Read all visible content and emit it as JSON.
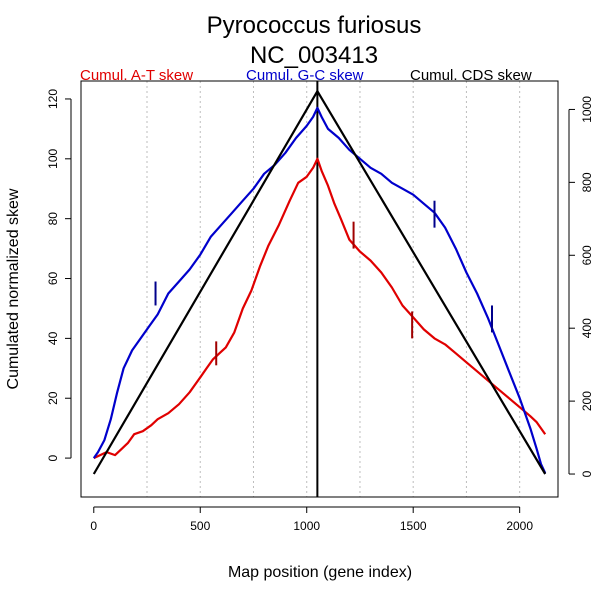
{
  "chart_data": {
    "type": "line",
    "title": "Pyrococcus furiosus",
    "subtitle": "NC_003413",
    "xlabel": "Map position (gene index)",
    "ylabel": "Cumulated normalized skew",
    "xlim": [
      -60,
      2180
    ],
    "ylim": [
      -13,
      126
    ],
    "y2lim": [
      -63,
      1078
    ],
    "x_ticks": [
      0,
      500,
      1000,
      1500,
      2000
    ],
    "y_ticks": [
      0,
      20,
      40,
      60,
      80,
      100,
      120
    ],
    "y2_ticks": [
      0,
      200,
      400,
      600,
      800,
      1000
    ],
    "x_gridlines": [
      250,
      500,
      750,
      1000,
      1250,
      1500,
      1750,
      2000
    ],
    "grid": "vertical dotted",
    "legend": [
      {
        "label": "Cumul. A-T skew",
        "color": "#e00000"
      },
      {
        "label": "Cumul. G-C skew",
        "color": "#0000cc"
      },
      {
        "label": "Cumul. CDS skew",
        "color": "#000000"
      }
    ],
    "vertical_marker_x": 1050,
    "series": [
      {
        "name": "Cumul. A-T skew",
        "axis": "left",
        "color": "#e00000",
        "x": [
          0,
          30,
          60,
          100,
          130,
          160,
          190,
          230,
          270,
          300,
          350,
          400,
          450,
          500,
          530,
          560,
          590,
          620,
          660,
          700,
          740,
          780,
          820,
          870,
          920,
          960,
          1000,
          1030,
          1050,
          1070,
          1100,
          1130,
          1160,
          1200,
          1250,
          1300,
          1350,
          1400,
          1450,
          1500,
          1550,
          1600,
          1650,
          1700,
          1750,
          1800,
          1850,
          1900,
          1950,
          2000,
          2050,
          2080,
          2120
        ],
        "y": [
          0,
          1,
          2,
          1,
          3,
          5,
          8,
          9,
          11,
          13,
          15,
          18,
          22,
          27,
          30,
          33,
          35,
          37,
          42,
          50,
          56,
          64,
          71,
          78,
          86,
          92,
          94,
          97,
          100,
          96,
          91,
          85,
          80,
          73,
          69,
          66,
          62,
          57,
          51,
          47,
          43,
          40,
          38,
          35,
          32,
          29,
          26,
          23,
          20,
          17,
          14,
          12,
          8
        ]
      },
      {
        "name": "Cumul. G-C skew",
        "axis": "left",
        "color": "#0000cc",
        "x": [
          0,
          20,
          50,
          80,
          110,
          140,
          180,
          220,
          260,
          300,
          350,
          400,
          450,
          500,
          550,
          600,
          650,
          700,
          750,
          800,
          850,
          900,
          950,
          1000,
          1030,
          1050,
          1070,
          1100,
          1150,
          1200,
          1250,
          1300,
          1350,
          1400,
          1450,
          1500,
          1550,
          1600,
          1650,
          1700,
          1750,
          1800,
          1850,
          1900,
          1950,
          2000,
          2050,
          2080,
          2100,
          2120
        ],
        "y": [
          0,
          2,
          6,
          13,
          22,
          30,
          36,
          40,
          44,
          48,
          55,
          59,
          63,
          68,
          74,
          78,
          82,
          86,
          90,
          95,
          98,
          102,
          107,
          111,
          114,
          117,
          114,
          110,
          107,
          103,
          100,
          97,
          95,
          92,
          90,
          88,
          85,
          82,
          77,
          70,
          62,
          55,
          47,
          38,
          29,
          20,
          10,
          3,
          -2,
          -5
        ]
      },
      {
        "name": "Cumul. CDS skew",
        "axis": "right",
        "color": "#000000",
        "x": [
          0,
          1050,
          2120
        ],
        "y": [
          0,
          1050,
          0
        ]
      }
    ],
    "markers": [
      {
        "series": "Cumul. A-T skew",
        "x": 575,
        "y_low": 31,
        "y_high": 39
      },
      {
        "series": "Cumul. A-T skew",
        "x": 1220,
        "y_low": 70,
        "y_high": 79
      },
      {
        "series": "Cumul. A-T skew",
        "x": 1495,
        "y_low": 40,
        "y_high": 49
      },
      {
        "series": "Cumul. G-C skew",
        "x": 290,
        "y_low": 51,
        "y_high": 59
      },
      {
        "series": "Cumul. G-C skew",
        "x": 1600,
        "y_low": 77,
        "y_high": 86
      },
      {
        "series": "Cumul. G-C skew",
        "x": 1870,
        "y_low": 42,
        "y_high": 51
      }
    ]
  }
}
